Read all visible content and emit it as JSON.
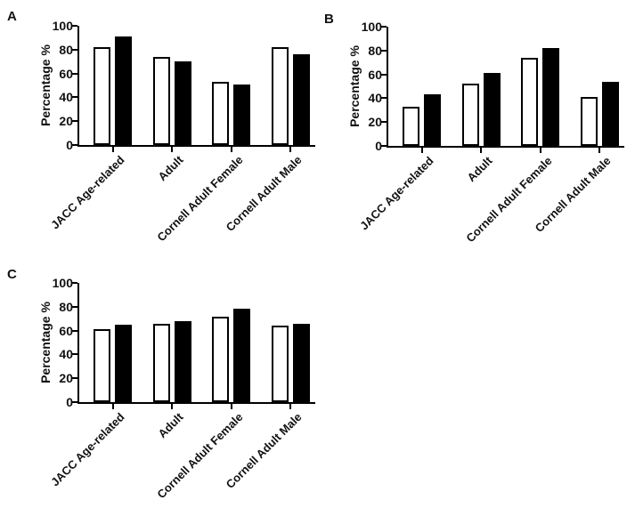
{
  "figure": {
    "background": "#ffffff",
    "text_color": "#111111",
    "axis_color": "#000000",
    "open_bar_fill": "#ffffff",
    "filled_bar_fill": "#000000",
    "bar_outline": "#000000"
  },
  "chart_data": [
    {
      "type": "bar",
      "panel": "A",
      "title": "",
      "xlabel": "",
      "ylabel": "Percentage %",
      "ylim": [
        0,
        100
      ],
      "yticks": [
        0,
        20,
        40,
        60,
        80,
        100
      ],
      "grid": "off",
      "legend_position": "none",
      "categories": [
        "JACC Age-related",
        "Adult",
        "Cornell Adult Female",
        "Cornell Adult Male"
      ],
      "series": [
        {
          "name": "open-bars",
          "fill": "#ffffff",
          "values": [
            82,
            74,
            53,
            82
          ]
        },
        {
          "name": "filled-bars",
          "fill": "#000000",
          "values": [
            91,
            70,
            51,
            76
          ]
        }
      ]
    },
    {
      "type": "bar",
      "panel": "B",
      "title": "",
      "xlabel": "",
      "ylabel": "Percentage %",
      "ylim": [
        0,
        100
      ],
      "yticks": [
        0,
        20,
        40,
        60,
        80,
        100
      ],
      "grid": "off",
      "legend_position": "none",
      "categories": [
        "JACC Age-related",
        "Adult",
        "Cornell Adult Female",
        "Cornell Adult Male"
      ],
      "series": [
        {
          "name": "open-bars",
          "fill": "#ffffff",
          "values": [
            33,
            52,
            74,
            41
          ]
        },
        {
          "name": "filled-bars",
          "fill": "#000000",
          "values": [
            43,
            61,
            82,
            54
          ]
        }
      ]
    },
    {
      "type": "bar",
      "panel": "C",
      "title": "",
      "xlabel": "",
      "ylabel": "Percentage %",
      "ylim": [
        0,
        100
      ],
      "yticks": [
        0,
        20,
        40,
        60,
        80,
        100
      ],
      "grid": "off",
      "legend_position": "none",
      "categories": [
        "JACC Age-related",
        "Adult",
        "Cornell Adult Female",
        "Cornell Adult Male"
      ],
      "series": [
        {
          "name": "open-bars",
          "fill": "#ffffff",
          "values": [
            61,
            66,
            72,
            64
          ]
        },
        {
          "name": "filled-bars",
          "fill": "#000000",
          "values": [
            65,
            68,
            78,
            66
          ]
        }
      ]
    }
  ]
}
